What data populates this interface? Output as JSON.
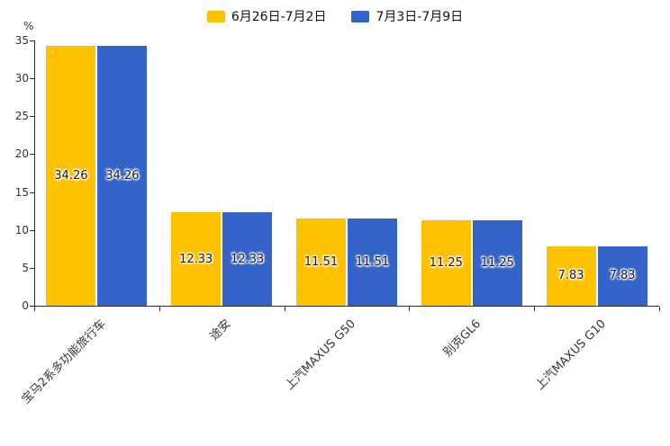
{
  "chart_data": {
    "type": "bar",
    "title": "",
    "ylabel": "%",
    "xlabel": "",
    "ylim": [
      0,
      35
    ],
    "yticks": [
      0,
      5,
      10,
      15,
      20,
      25,
      30,
      35
    ],
    "grid": false,
    "legend_position": "top",
    "value_label_decimals": 2,
    "categories": [
      "宝马2系多功能旅行车",
      "途安",
      "上汽MAXUS G50",
      "别克GL6",
      "上汽MAXUS G10"
    ],
    "series": [
      {
        "name": "6月26日-7月2日",
        "color": "#FFC200",
        "values": [
          34.26,
          12.33,
          11.51,
          11.25,
          7.83
        ]
      },
      {
        "name": "7月3日-7月9日",
        "color": "#3564C8",
        "values": [
          34.26,
          12.33,
          11.51,
          11.25,
          7.83
        ]
      }
    ]
  }
}
